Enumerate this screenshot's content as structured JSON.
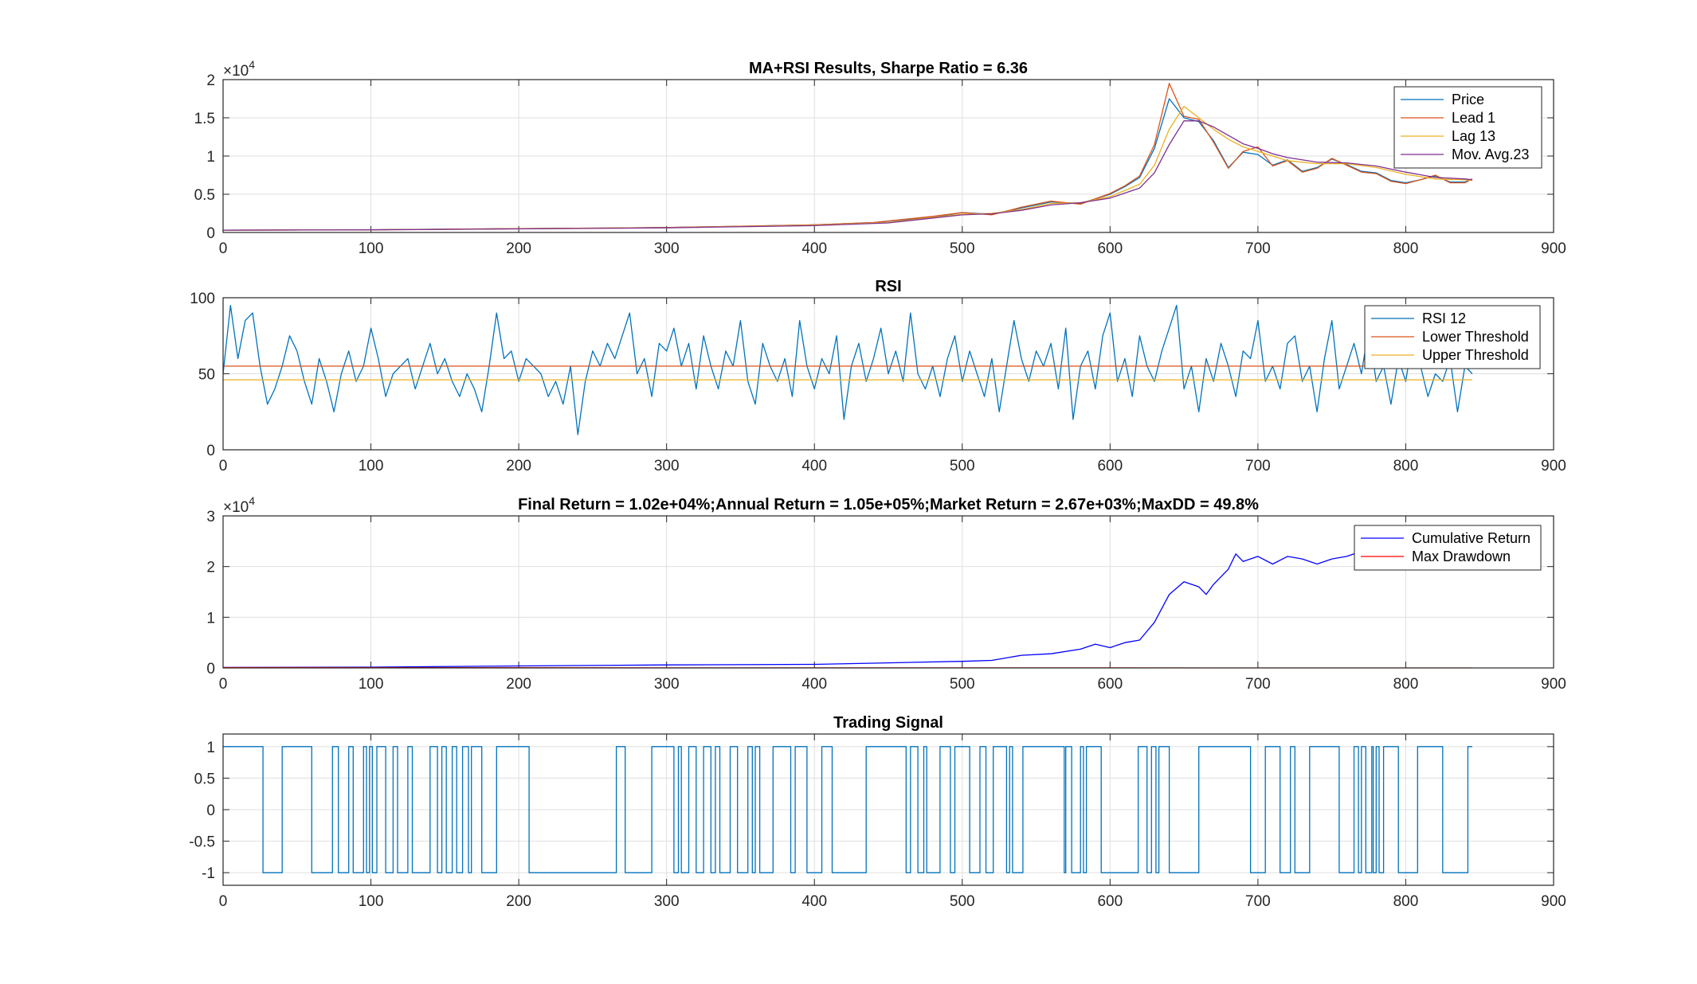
{
  "chart_data": [
    {
      "type": "line",
      "title": "MA+RSI Results, Sharpe Ratio = 6.36",
      "xlabel": "",
      "ylabel": "",
      "xlim": [
        0,
        900
      ],
      "ylim": [
        0,
        20000
      ],
      "x_ticks": [
        "0",
        "100",
        "200",
        "300",
        "400",
        "500",
        "600",
        "700",
        "800",
        "900"
      ],
      "y_ticks": [
        "0",
        "0.5",
        "1",
        "1.5",
        "2"
      ],
      "y_exponent": "4",
      "grid": true,
      "legend_position": "top-right",
      "series": [
        {
          "name": "Price",
          "color": "#0072bd",
          "x": [
            0,
            100,
            200,
            300,
            400,
            440,
            480,
            500,
            520,
            540,
            560,
            580,
            600,
            610,
            620,
            630,
            640,
            650,
            660,
            670,
            680,
            690,
            700,
            710,
            720,
            730,
            740,
            750,
            760,
            770,
            780,
            790,
            800,
            810,
            820,
            830,
            840,
            845
          ],
          "values": [
            300,
            350,
            500,
            650,
            1000,
            1300,
            2000,
            2600,
            2400,
            3200,
            4000,
            3800,
            5000,
            6000,
            7200,
            11000,
            17500,
            15000,
            14500,
            12000,
            8500,
            10500,
            10200,
            8800,
            9500,
            8000,
            8500,
            9600,
            8900,
            8000,
            7800,
            6800,
            6500,
            6900,
            7400,
            6600,
            6600,
            7000
          ]
        },
        {
          "name": "Lead 1",
          "color": "#d95319",
          "x": [
            0,
            100,
            200,
            300,
            400,
            440,
            480,
            500,
            520,
            540,
            560,
            580,
            600,
            610,
            620,
            630,
            640,
            650,
            660,
            670,
            680,
            690,
            700,
            710,
            720,
            730,
            740,
            750,
            760,
            770,
            780,
            790,
            800,
            810,
            820,
            830,
            840,
            845
          ],
          "values": [
            300,
            350,
            500,
            650,
            1000,
            1300,
            2100,
            2600,
            2300,
            3300,
            4100,
            3700,
            5100,
            6100,
            7400,
            11500,
            19500,
            15200,
            14800,
            11800,
            8400,
            10600,
            11200,
            8700,
            9400,
            7900,
            8400,
            9700,
            8800,
            7900,
            7700,
            6700,
            6400,
            6900,
            7500,
            6500,
            6500,
            7000
          ]
        },
        {
          "name": "Lag 13",
          "color": "#edb120",
          "x": [
            0,
            100,
            200,
            300,
            400,
            450,
            500,
            520,
            540,
            560,
            580,
            600,
            620,
            630,
            640,
            650,
            660,
            670,
            680,
            690,
            700,
            710,
            720,
            740,
            760,
            780,
            800,
            820,
            840,
            845
          ],
          "values": [
            300,
            340,
            480,
            620,
            950,
            1300,
            2400,
            2500,
            3000,
            3800,
            3900,
            4700,
            6300,
            8800,
            13500,
            16500,
            15000,
            13500,
            12200,
            11200,
            10600,
            10000,
            9400,
            9000,
            9000,
            8500,
            7600,
            7000,
            6900,
            6800
          ]
        },
        {
          "name": "Mov. Avg.23",
          "color": "#7e2f8e",
          "x": [
            0,
            100,
            200,
            300,
            400,
            450,
            500,
            520,
            540,
            560,
            580,
            600,
            620,
            630,
            640,
            650,
            660,
            670,
            680,
            690,
            700,
            710,
            720,
            740,
            760,
            780,
            800,
            820,
            840,
            845
          ],
          "values": [
            300,
            340,
            470,
            600,
            900,
            1250,
            2300,
            2450,
            2900,
            3600,
            3900,
            4500,
            5800,
            7800,
            11500,
            14600,
            14600,
            13800,
            12700,
            11600,
            11000,
            10300,
            9800,
            9200,
            9100,
            8700,
            7900,
            7200,
            7000,
            6900
          ]
        }
      ]
    },
    {
      "type": "line",
      "title": "RSI",
      "xlabel": "",
      "ylabel": "",
      "xlim": [
        0,
        900
      ],
      "ylim": [
        0,
        100
      ],
      "x_ticks": [
        "0",
        "100",
        "200",
        "300",
        "400",
        "500",
        "600",
        "700",
        "800",
        "900"
      ],
      "y_ticks": [
        "0",
        "50",
        "100"
      ],
      "grid": true,
      "legend_position": "top-right",
      "series": [
        {
          "name": "RSI 12",
          "color": "#0072bd",
          "x": [
            0,
            5,
            10,
            15,
            20,
            25,
            30,
            35,
            40,
            45,
            50,
            55,
            60,
            65,
            70,
            75,
            80,
            85,
            90,
            95,
            100,
            105,
            110,
            115,
            120,
            125,
            130,
            135,
            140,
            145,
            150,
            155,
            160,
            165,
            170,
            175,
            180,
            185,
            190,
            195,
            200,
            205,
            210,
            215,
            220,
            225,
            230,
            235,
            240,
            245,
            250,
            255,
            260,
            265,
            270,
            275,
            280,
            285,
            290,
            295,
            300,
            305,
            310,
            315,
            320,
            325,
            330,
            335,
            340,
            345,
            350,
            355,
            360,
            365,
            370,
            375,
            380,
            385,
            390,
            395,
            400,
            405,
            410,
            415,
            420,
            425,
            430,
            435,
            440,
            445,
            450,
            455,
            460,
            465,
            470,
            475,
            480,
            485,
            490,
            495,
            500,
            505,
            510,
            515,
            520,
            525,
            530,
            535,
            540,
            545,
            550,
            555,
            560,
            565,
            570,
            575,
            580,
            585,
            590,
            595,
            600,
            605,
            610,
            615,
            620,
            625,
            630,
            635,
            640,
            645,
            650,
            655,
            660,
            665,
            670,
            675,
            680,
            685,
            690,
            695,
            700,
            705,
            710,
            715,
            720,
            725,
            730,
            735,
            740,
            745,
            750,
            755,
            760,
            765,
            770,
            775,
            780,
            785,
            790,
            795,
            800,
            805,
            810,
            815,
            820,
            825,
            830,
            835,
            840,
            845
          ],
          "values": [
            50,
            95,
            60,
            85,
            90,
            55,
            30,
            40,
            55,
            75,
            65,
            45,
            30,
            60,
            45,
            25,
            50,
            65,
            45,
            55,
            80,
            60,
            35,
            50,
            55,
            60,
            40,
            55,
            70,
            50,
            60,
            45,
            35,
            50,
            40,
            25,
            55,
            90,
            60,
            65,
            45,
            60,
            55,
            50,
            35,
            45,
            30,
            55,
            10,
            45,
            65,
            55,
            70,
            60,
            75,
            90,
            50,
            60,
            35,
            70,
            65,
            80,
            55,
            70,
            40,
            75,
            55,
            40,
            65,
            55,
            85,
            45,
            30,
            70,
            55,
            45,
            60,
            35,
            85,
            55,
            40,
            60,
            50,
            75,
            20,
            55,
            70,
            45,
            60,
            80,
            50,
            65,
            45,
            90,
            50,
            40,
            55,
            35,
            60,
            75,
            45,
            65,
            50,
            35,
            60,
            25,
            55,
            85,
            60,
            45,
            65,
            55,
            70,
            40,
            80,
            20,
            55,
            65,
            40,
            75,
            90,
            45,
            60,
            35,
            75,
            55,
            45,
            65,
            80,
            95,
            40,
            55,
            25,
            60,
            45,
            70,
            55,
            35,
            65,
            60,
            85,
            45,
            55,
            40,
            70,
            75,
            45,
            55,
            25,
            60,
            85,
            40,
            55,
            70,
            50,
            80,
            45,
            55,
            30,
            60,
            45,
            75,
            55,
            35,
            50,
            45,
            60,
            25,
            55,
            50
          ]
        },
        {
          "name": "Lower Threshold",
          "color": "#d95319",
          "x": [
            0,
            845
          ],
          "values": [
            55,
            55
          ]
        },
        {
          "name": "Upper Threshold",
          "color": "#edb120",
          "x": [
            0,
            845
          ],
          "values": [
            46,
            46
          ]
        }
      ]
    },
    {
      "type": "line",
      "title": "Final Return = 1.02e+04%;Annual Return = 1.05e+05%;Market Return = 2.67e+03%;MaxDD = 49.8%",
      "xlabel": "",
      "ylabel": "",
      "xlim": [
        0,
        900
      ],
      "ylim": [
        0,
        30000
      ],
      "x_ticks": [
        "0",
        "100",
        "200",
        "300",
        "400",
        "500",
        "600",
        "700",
        "800",
        "900"
      ],
      "y_ticks": [
        "0",
        "1",
        "2",
        "3"
      ],
      "y_exponent": "4",
      "grid": true,
      "legend_position": "top-right",
      "series": [
        {
          "name": "Cumulative Return",
          "color": "#0000ff",
          "x": [
            0,
            100,
            200,
            300,
            400,
            450,
            500,
            520,
            540,
            560,
            580,
            590,
            600,
            610,
            620,
            630,
            640,
            650,
            660,
            665,
            670,
            680,
            685,
            690,
            700,
            710,
            720,
            730,
            740,
            750,
            760,
            770
          ],
          "values": [
            100,
            150,
            400,
            600,
            700,
            1000,
            1300,
            1500,
            2500,
            2800,
            3700,
            4700,
            4000,
            5000,
            5500,
            9000,
            14500,
            17000,
            16000,
            14500,
            16500,
            19500,
            22500,
            21000,
            22000,
            20500,
            22000,
            21500,
            20500,
            21500,
            22000,
            23000
          ]
        },
        {
          "name": "Max Drawdown",
          "color": "#ff0000",
          "x": [
            0,
            100,
            200,
            300,
            400,
            500,
            600,
            700,
            800,
            845
          ],
          "values": [
            80,
            60,
            40,
            20,
            15,
            10,
            8,
            5,
            4,
            3
          ]
        }
      ]
    },
    {
      "type": "line",
      "title": "Trading Signal",
      "xlabel": "",
      "ylabel": "",
      "xlim": [
        0,
        900
      ],
      "ylim": [
        -1.2,
        1.2
      ],
      "x_ticks": [
        "0",
        "100",
        "200",
        "300",
        "400",
        "500",
        "600",
        "700",
        "800",
        "900"
      ],
      "y_ticks": [
        "-1",
        "-0.5",
        "0",
        "0.5",
        "1"
      ],
      "grid": true,
      "series": [
        {
          "name": "",
          "color": "#0072bd",
          "transitions": [
            0,
            1,
            27,
            -1,
            40,
            1,
            60,
            -1,
            74,
            1,
            78,
            -1,
            85,
            1,
            88,
            -1,
            95,
            1,
            97,
            -1,
            99,
            1,
            101,
            -1,
            104,
            1,
            110,
            -1,
            115,
            1,
            118,
            -1,
            125,
            1,
            128,
            -1,
            140,
            1,
            145,
            -1,
            148,
            1,
            151,
            -1,
            155,
            1,
            158,
            -1,
            162,
            1,
            166,
            -1,
            168,
            1,
            175,
            -1,
            185,
            1,
            207,
            -1,
            266,
            1,
            272,
            -1,
            290,
            1,
            305,
            -1,
            308,
            1,
            310,
            -1,
            315,
            1,
            320,
            -1,
            325,
            1,
            330,
            -1,
            333,
            1,
            336,
            -1,
            343,
            1,
            348,
            -1,
            355,
            1,
            358,
            -1,
            360,
            1,
            363,
            -1,
            372,
            1,
            384,
            -1,
            387,
            1,
            395,
            -1,
            405,
            1,
            412,
            -1,
            435,
            1,
            462,
            -1,
            465,
            1,
            470,
            -1,
            474,
            1,
            476,
            -1,
            485,
            1,
            492,
            -1,
            495,
            1,
            505,
            -1,
            512,
            1,
            516,
            -1,
            521,
            1,
            530,
            -1,
            532,
            1,
            534,
            -1,
            541,
            1,
            569,
            -1,
            570,
            1,
            574,
            -1,
            580,
            1,
            582,
            -1,
            584,
            1,
            594,
            -1,
            619,
            1,
            625,
            -1,
            628,
            1,
            631,
            -1,
            633,
            1,
            640,
            -1,
            660,
            1,
            695,
            -1,
            705,
            1,
            715,
            -1,
            722,
            1,
            725,
            -1,
            735,
            1,
            755,
            -1,
            765,
            1,
            768,
            -1,
            770,
            1,
            773,
            -1,
            777,
            1,
            778,
            -1,
            780,
            1,
            782,
            -1,
            785,
            1,
            795,
            -1,
            808,
            1,
            825,
            -1,
            842,
            1,
            845
          ]
        }
      ]
    }
  ],
  "decor": {
    "times": "×",
    "base": "10"
  }
}
